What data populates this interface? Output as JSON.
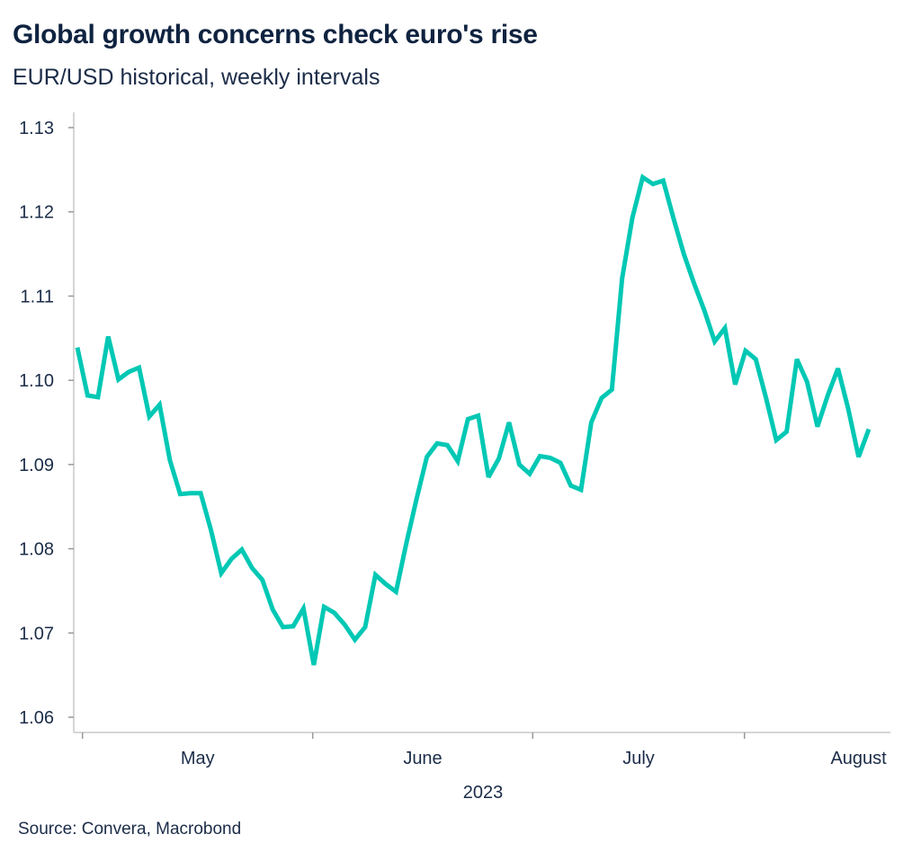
{
  "chart_data": {
    "type": "line",
    "title": "Global growth concerns check euro's rise",
    "subtitle": "EUR/USD historical, weekly intervals",
    "source": "Source: Convera, Macrobond",
    "xlabel": "2023",
    "ylabel": "",
    "ylim": [
      1.06,
      1.13
    ],
    "yticks": [
      "1.06",
      "1.07",
      "1.08",
      "1.09",
      "1.10",
      "1.11",
      "1.12",
      "1.13"
    ],
    "xtick_positions": [
      0.5,
      22.9,
      44.3,
      64.9
    ],
    "xlabels": [
      {
        "label": "May",
        "at": 11.7
      },
      {
        "label": "June",
        "at": 33.6
      },
      {
        "label": "July",
        "at": 54.6
      },
      {
        "label": "August",
        "at": 76
      }
    ],
    "grid": false,
    "color": "#00c8b4",
    "series": [
      {
        "name": "EUR/USD",
        "values": [
          1.1039,
          1.0982,
          1.098,
          1.1052,
          1.1001,
          1.101,
          1.1015,
          1.0957,
          1.0971,
          1.0905,
          1.0865,
          1.0866,
          1.0866,
          1.0822,
          1.0771,
          1.0788,
          1.0799,
          1.0777,
          1.0763,
          1.0728,
          1.0707,
          1.0708,
          1.0729,
          1.0662,
          1.0731,
          1.0724,
          1.071,
          1.0692,
          1.0707,
          1.0769,
          1.0758,
          1.0749,
          1.0806,
          1.0859,
          1.0909,
          1.0925,
          1.0923,
          1.0904,
          1.0954,
          1.0958,
          1.0885,
          1.0907,
          1.095,
          1.09,
          1.0889,
          1.091,
          1.0908,
          1.0902,
          1.0875,
          1.087,
          1.095,
          1.0979,
          1.0989,
          1.1121,
          1.1193,
          1.1241,
          1.1233,
          1.1237,
          1.1192,
          1.115,
          1.1115,
          1.1083,
          1.1046,
          1.1062,
          1.0995,
          1.1035,
          1.1025,
          1.0979,
          1.0929,
          1.0939,
          1.1025,
          1.0998,
          1.0945,
          1.0982,
          1.1014,
          1.0966,
          1.0909,
          1.0942
        ]
      }
    ]
  }
}
